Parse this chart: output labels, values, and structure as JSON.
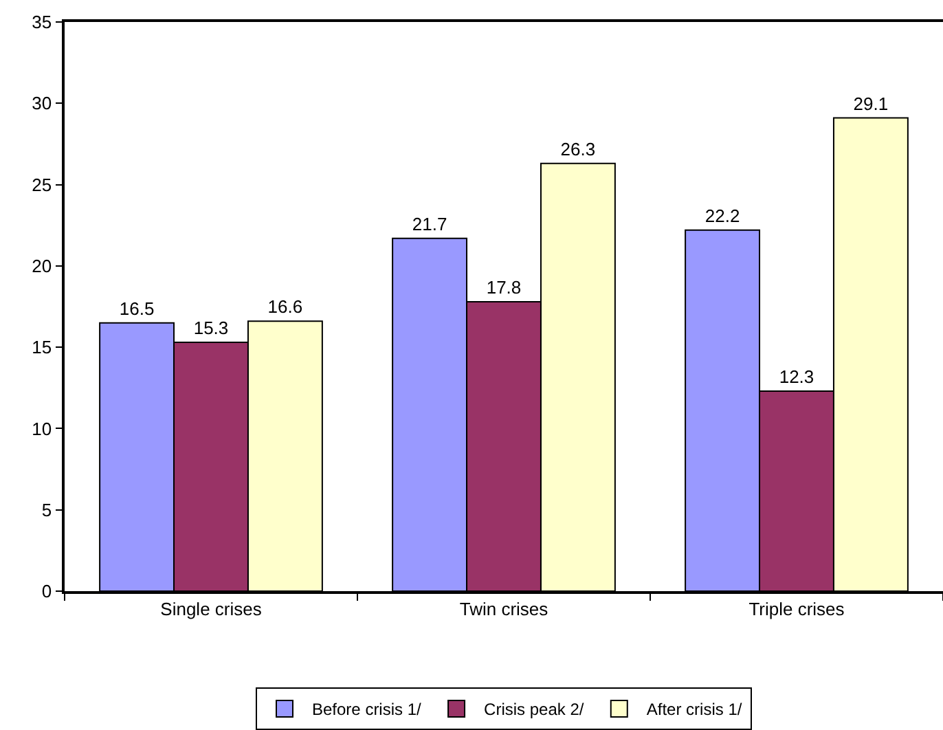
{
  "chart_data": {
    "type": "bar",
    "categories": [
      "Single crises",
      "Twin crises",
      "Triple crises"
    ],
    "series": [
      {
        "name": "Before crisis 1/",
        "color": "#9999ff",
        "values": [
          16.5,
          21.7,
          22.2
        ]
      },
      {
        "name": "Crisis peak 2/",
        "color": "#993366",
        "values": [
          15.3,
          17.8,
          12.3
        ]
      },
      {
        "name": "After crisis 1/",
        "color": "#ffffcc",
        "values": [
          16.6,
          26.3,
          29.1
        ]
      }
    ],
    "ylim": [
      0,
      35
    ],
    "yticks": [
      0,
      5,
      10,
      15,
      20,
      25,
      30,
      35
    ],
    "data_labels": true,
    "grid": false,
    "legend": "bottom"
  }
}
